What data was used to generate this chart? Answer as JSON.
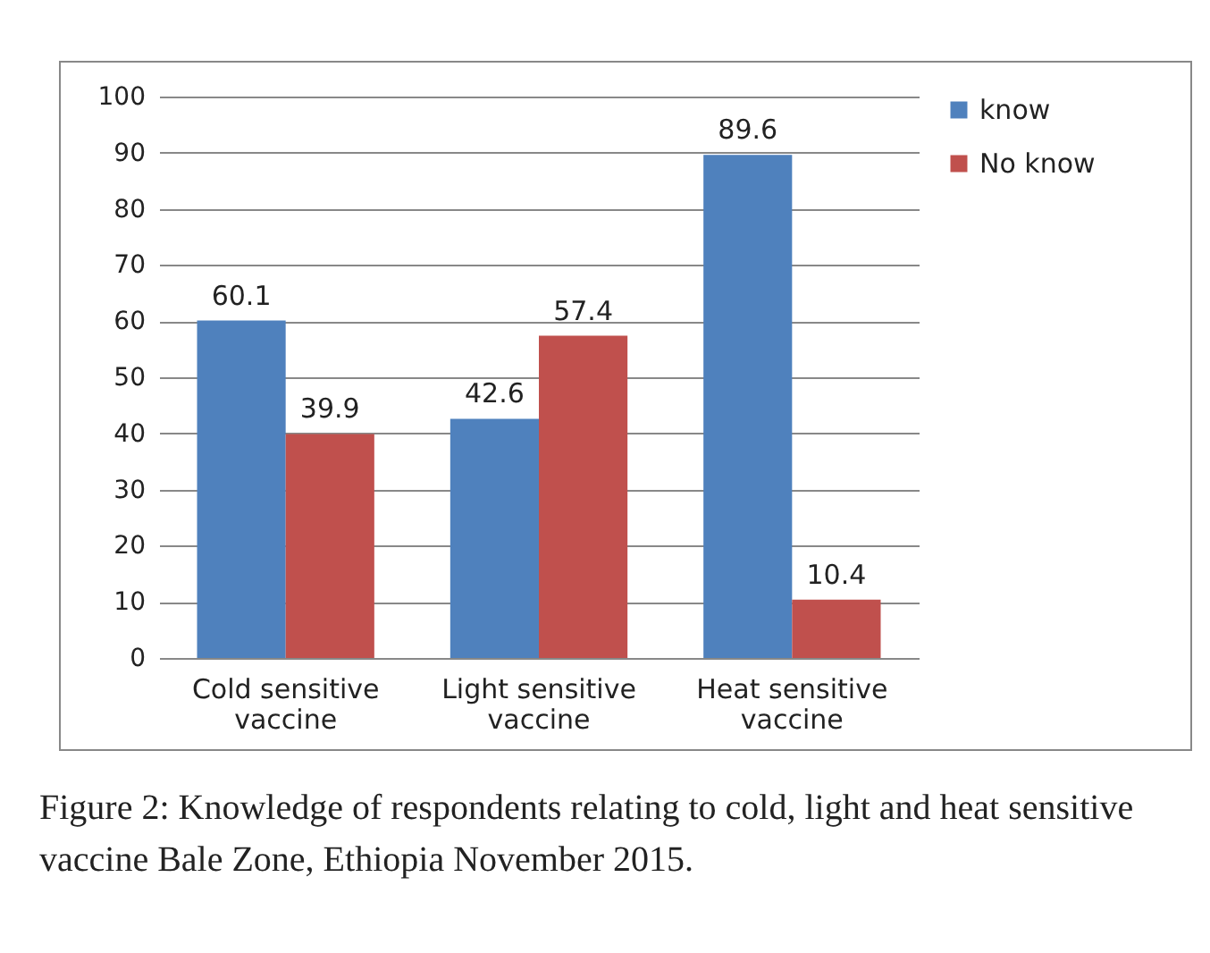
{
  "chart_data": {
    "type": "bar",
    "categories": [
      "Cold sensitive vaccine",
      "Light sensitive vaccine",
      "Heat sensitive vaccine"
    ],
    "series": [
      {
        "name": "know",
        "color": "#4f81bd",
        "values": [
          60.1,
          42.6,
          89.6
        ]
      },
      {
        "name": "No know",
        "color": "#c0504d",
        "values": [
          39.9,
          57.4,
          10.4
        ]
      }
    ],
    "ylim": [
      0,
      100
    ],
    "yticks": [
      0,
      10,
      20,
      30,
      40,
      50,
      60,
      70,
      80,
      90,
      100
    ],
    "grid": "y",
    "legend": "right",
    "data_labels": true,
    "annotations": [
      "Figure 2: Knowledge of respondents relating to cold, light and heat sensitive vaccine Bale Zone, Ethiopia November 2015."
    ]
  }
}
